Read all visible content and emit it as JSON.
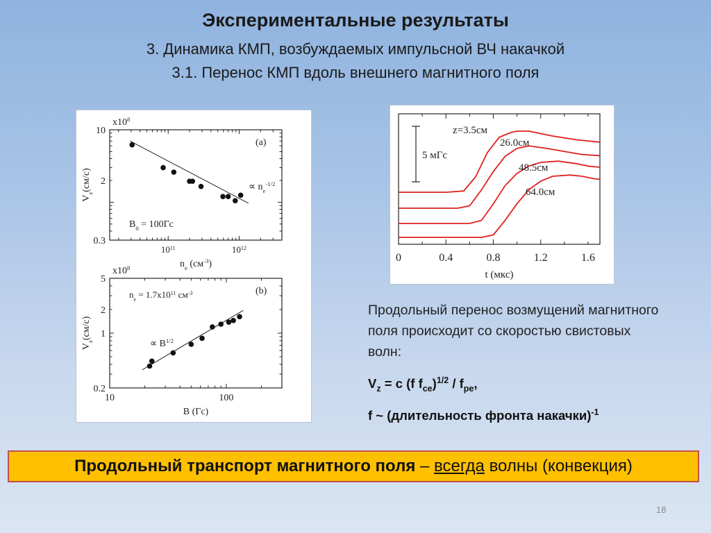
{
  "slide": {
    "title": "Экспериментальные результаты",
    "subtitle1": "3. Динамика КМП, возбуждаемых импульсной ВЧ накачкой",
    "subtitle2": "3.1. Перенос КМП вдоль внешнего магнитного поля",
    "paragraph": "Продольный перенос возмущений магнитного поля происходит со скоростью свистовых волн:",
    "formula1": {
      "v": "V",
      "z": "z",
      "eq": " = c (f f",
      "ce": "ce",
      "p12": ")",
      "sup12": "1/2",
      "div": " / f",
      "pe": "pe",
      "end": ","
    },
    "formula2": {
      "text": "f ~ (длительность фронта накачки)",
      "sup": "-1"
    },
    "conclusion": {
      "bold": "Продольный транспорт магнитного поля",
      "dash": " – ",
      "under": "всегда",
      "rest": " волны (конвекция)"
    },
    "page_number": "18"
  },
  "chart_data": [
    {
      "type": "scatter",
      "panel_label": "(a)",
      "x_scale": "log",
      "y_scale": "log",
      "xlim": [
        15000000000.0,
        4000000000000.0
      ],
      "ylim": [
        0.3,
        10
      ],
      "x_ticks": [
        {
          "v": 100000000000.0,
          "base": "10",
          "exp": "11"
        },
        {
          "v": 1000000000000.0,
          "base": "10",
          "exp": "12"
        }
      ],
      "y_ticks": [
        {
          "v": 10,
          "label": "10"
        },
        {
          "v": 2,
          "label": "2"
        },
        {
          "v": 0.3,
          "label": "0.3"
        }
      ],
      "y_multiplier": {
        "base": "x10",
        "exp": "8"
      },
      "xlabel": {
        "main": "n",
        "sub": "e",
        "rest": " (см",
        "sup": "-3",
        "close": ")"
      },
      "ylabel": {
        "main": "V",
        "sub": "z",
        "rest": "(см/с)"
      },
      "points": [
        {
          "x": 31000000000.0,
          "y": 6.2
        },
        {
          "x": 85000000000.0,
          "y": 3.0
        },
        {
          "x": 120000000000.0,
          "y": 2.6
        },
        {
          "x": 200000000000.0,
          "y": 1.95
        },
        {
          "x": 220000000000.0,
          "y": 1.95
        },
        {
          "x": 290000000000.0,
          "y": 1.65
        },
        {
          "x": 590000000000.0,
          "y": 1.2
        },
        {
          "x": 700000000000.0,
          "y": 1.2
        },
        {
          "x": 880000000000.0,
          "y": 1.05
        },
        {
          "x": 1050000000000.0,
          "y": 1.25
        }
      ],
      "fit_line": [
        {
          "x": 29000000000.0,
          "y": 7.0
        },
        {
          "x": 1350000000000.0,
          "y": 0.97
        }
      ],
      "fit_label": {
        "prefix": "∝ n",
        "sub": "e",
        "sup": "-1/2"
      },
      "param_label": {
        "main": "B",
        "sub": "0",
        "rest": " = 100Гс"
      }
    },
    {
      "type": "scatter",
      "panel_label": "(b)",
      "x_scale": "log",
      "y_scale": "log",
      "xlim": [
        10,
        300
      ],
      "ylim": [
        0.2,
        5
      ],
      "x_ticks": [
        {
          "v": 10,
          "label": "10"
        },
        {
          "v": 100,
          "label": "100"
        }
      ],
      "y_ticks": [
        {
          "v": 5,
          "label": "5"
        },
        {
          "v": 2,
          "label": "2"
        },
        {
          "v": 1,
          "label": "1"
        },
        {
          "v": 0.2,
          "label": "0.2"
        }
      ],
      "y_multiplier": {
        "base": "x10",
        "exp": "8"
      },
      "xlabel": {
        "main": "B (Гс)"
      },
      "ylabel": {
        "main": "V",
        "sub": "z",
        "rest": "(см/с)"
      },
      "points": [
        {
          "x": 22,
          "y": 0.38
        },
        {
          "x": 23,
          "y": 0.44
        },
        {
          "x": 35,
          "y": 0.56
        },
        {
          "x": 50,
          "y": 0.72
        },
        {
          "x": 62,
          "y": 0.86
        },
        {
          "x": 76,
          "y": 1.2
        },
        {
          "x": 90,
          "y": 1.3
        },
        {
          "x": 105,
          "y": 1.38
        },
        {
          "x": 115,
          "y": 1.45
        },
        {
          "x": 130,
          "y": 1.62
        }
      ],
      "fit_line": [
        {
          "x": 19,
          "y": 0.34
        },
        {
          "x": 140,
          "y": 1.95
        }
      ],
      "fit_label": {
        "prefix": "∝ B",
        "sup": "1/2"
      },
      "param_label": {
        "main": "n",
        "sub": "e",
        "rest": " = 1.7x10",
        "sup": "11",
        "tail": " см",
        "sup2": "-3"
      }
    },
    {
      "type": "line",
      "xlim": [
        0,
        1.7
      ],
      "x_ticks": [
        "0",
        "0.4",
        "0.8",
        "1.2",
        "1.6"
      ],
      "x_tick_values": [
        0,
        0.4,
        0.8,
        1.2,
        1.6
      ],
      "xlabel": "t (мкс)",
      "scale_bar_label": "5 мГс",
      "series": [
        {
          "name": "z=3.5см",
          "color": "#e02020",
          "points": [
            [
              0,
              0
            ],
            [
              0.2,
              0
            ],
            [
              0.4,
              0
            ],
            [
              0.55,
              0.02
            ],
            [
              0.65,
              0.25
            ],
            [
              0.75,
              0.65
            ],
            [
              0.85,
              0.9
            ],
            [
              0.95,
              0.98
            ],
            [
              1.0,
              1.0
            ],
            [
              1.1,
              1.0
            ],
            [
              1.3,
              0.92
            ],
            [
              1.5,
              0.86
            ],
            [
              1.6,
              0.84
            ],
            [
              1.7,
              0.82
            ]
          ]
        },
        {
          "name": "26.0см",
          "color": "#e02020",
          "points": [
            [
              0,
              0
            ],
            [
              0.3,
              0
            ],
            [
              0.5,
              0
            ],
            [
              0.6,
              0.04
            ],
            [
              0.7,
              0.3
            ],
            [
              0.8,
              0.6
            ],
            [
              0.9,
              0.85
            ],
            [
              1.0,
              0.98
            ],
            [
              1.1,
              1.02
            ],
            [
              1.25,
              0.98
            ],
            [
              1.4,
              0.93
            ],
            [
              1.55,
              0.88
            ],
            [
              1.7,
              0.86
            ]
          ]
        },
        {
          "name": "48.5см",
          "color": "#e02020",
          "points": [
            [
              0,
              0
            ],
            [
              0.4,
              0
            ],
            [
              0.6,
              0
            ],
            [
              0.7,
              0.05
            ],
            [
              0.8,
              0.32
            ],
            [
              0.9,
              0.62
            ],
            [
              1.0,
              0.82
            ],
            [
              1.1,
              0.94
            ],
            [
              1.2,
              1.0
            ],
            [
              1.35,
              1.02
            ],
            [
              1.5,
              0.98
            ],
            [
              1.6,
              0.94
            ],
            [
              1.7,
              0.92
            ]
          ]
        },
        {
          "name": "64.0см",
          "color": "#e02020",
          "points": [
            [
              0,
              0
            ],
            [
              0.5,
              0
            ],
            [
              0.7,
              0
            ],
            [
              0.8,
              0.04
            ],
            [
              0.9,
              0.28
            ],
            [
              1.0,
              0.55
            ],
            [
              1.1,
              0.78
            ],
            [
              1.2,
              0.92
            ],
            [
              1.3,
              1.0
            ],
            [
              1.45,
              1.02
            ],
            [
              1.55,
              1.0
            ],
            [
              1.65,
              0.96
            ],
            [
              1.7,
              0.95
            ]
          ]
        }
      ]
    }
  ]
}
